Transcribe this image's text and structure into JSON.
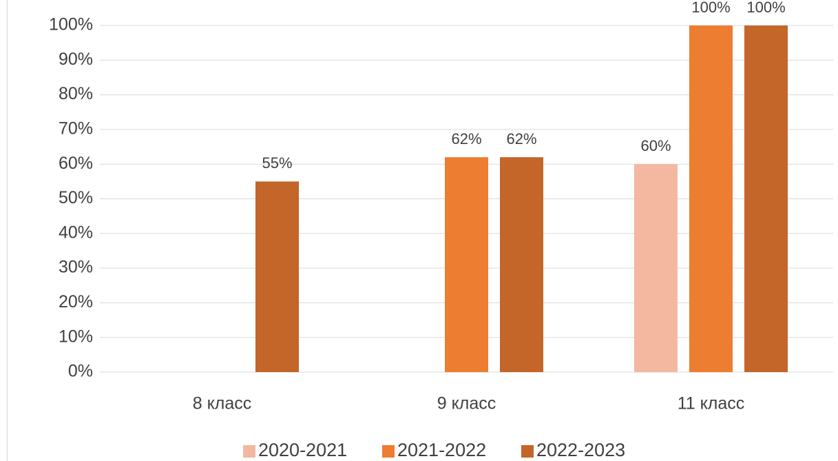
{
  "chart_data": {
    "type": "bar",
    "categories": [
      "8 класс",
      "9 класс",
      "11 класс"
    ],
    "series": [
      {
        "name": "2020-2021",
        "color": "#f4b8a0",
        "values": [
          null,
          null,
          60
        ],
        "value_labels": [
          null,
          null,
          "60%"
        ]
      },
      {
        "name": "2021-2022",
        "color": "#ed7d31",
        "values": [
          null,
          62,
          100
        ],
        "value_labels": [
          null,
          "62%",
          "100%"
        ]
      },
      {
        "name": "2022-2023",
        "color": "#c4652a",
        "values": [
          55,
          62,
          100
        ],
        "value_labels": [
          "55%",
          "62%",
          "100%"
        ]
      }
    ],
    "ylim": [
      0,
      100
    ],
    "yticks": [
      {
        "value": 0,
        "label": "0%"
      },
      {
        "value": 10,
        "label": "10%"
      },
      {
        "value": 20,
        "label": "20%"
      },
      {
        "value": 30,
        "label": "30%"
      },
      {
        "value": 40,
        "label": "40%"
      },
      {
        "value": 50,
        "label": "50%"
      },
      {
        "value": 60,
        "label": "60%"
      },
      {
        "value": 70,
        "label": "70%"
      },
      {
        "value": 80,
        "label": "80%"
      },
      {
        "value": 90,
        "label": "90%"
      },
      {
        "value": 100,
        "label": "100%"
      }
    ],
    "grid": true,
    "legend": "bottom"
  }
}
